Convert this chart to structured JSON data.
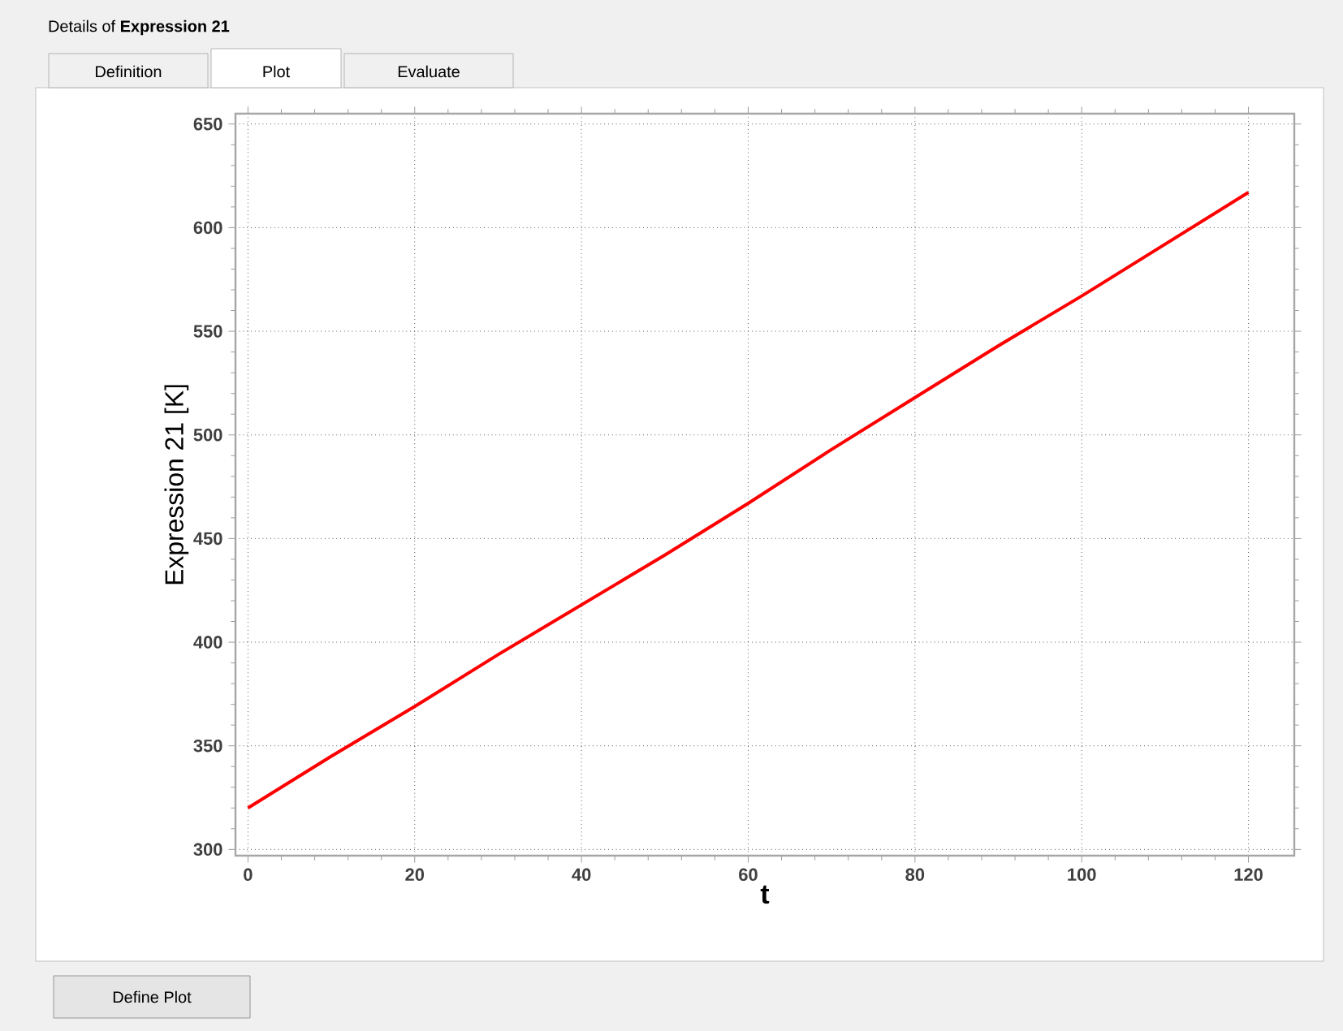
{
  "chart_data": {
    "type": "line",
    "title": "Details of **Expression 21**",
    "xlabel": "t",
    "ylabel": "Expression 21 [K]",
    "annotations": [
      "Definition",
      "Plot",
      "Evaluate",
      "Define Plot"
    ],
    "x": [
      0,
      10,
      20,
      30,
      40,
      50,
      60,
      70,
      80,
      90,
      100,
      110,
      120
    ],
    "series": [
      {
        "color": "#ff0000",
        "values": [
          320,
          345,
          369,
          394,
          418,
          442,
          467,
          493,
          518,
          543,
          567,
          592,
          617
        ]
      }
    ],
    "xlim": [
      -1.5,
      125.5
    ],
    "ylim": [
      297,
      655
    ],
    "xticks": [
      0,
      20,
      40,
      60,
      80,
      100,
      120
    ],
    "yticks": [
      300,
      350,
      400,
      450,
      500,
      550,
      600,
      650
    ],
    "grid": true,
    "marker": "none",
    "line_style": "solid"
  }
}
